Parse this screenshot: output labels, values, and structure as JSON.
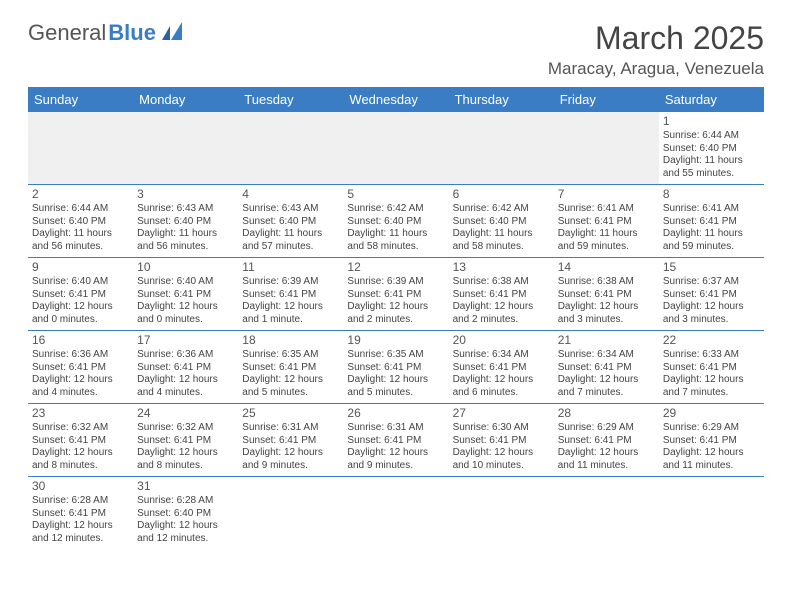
{
  "logo": {
    "text1": "General",
    "text2": "Blue"
  },
  "title": "March 2025",
  "location": "Maracay, Aragua, Venezuela",
  "day_headers": [
    "Sunday",
    "Monday",
    "Tuesday",
    "Wednesday",
    "Thursday",
    "Friday",
    "Saturday"
  ],
  "colors": {
    "header_bg": "#3b7dc4",
    "header_fg": "#ffffff",
    "rule": "#3b7dc4"
  },
  "weeks": [
    [
      {
        "n": "",
        "lines": []
      },
      {
        "n": "",
        "lines": []
      },
      {
        "n": "",
        "lines": []
      },
      {
        "n": "",
        "lines": []
      },
      {
        "n": "",
        "lines": []
      },
      {
        "n": "",
        "lines": []
      },
      {
        "n": "1",
        "lines": [
          "Sunrise: 6:44 AM",
          "Sunset: 6:40 PM",
          "Daylight: 11 hours and 55 minutes."
        ]
      }
    ],
    [
      {
        "n": "2",
        "lines": [
          "Sunrise: 6:44 AM",
          "Sunset: 6:40 PM",
          "Daylight: 11 hours and 56 minutes."
        ]
      },
      {
        "n": "3",
        "lines": [
          "Sunrise: 6:43 AM",
          "Sunset: 6:40 PM",
          "Daylight: 11 hours and 56 minutes."
        ]
      },
      {
        "n": "4",
        "lines": [
          "Sunrise: 6:43 AM",
          "Sunset: 6:40 PM",
          "Daylight: 11 hours and 57 minutes."
        ]
      },
      {
        "n": "5",
        "lines": [
          "Sunrise: 6:42 AM",
          "Sunset: 6:40 PM",
          "Daylight: 11 hours and 58 minutes."
        ]
      },
      {
        "n": "6",
        "lines": [
          "Sunrise: 6:42 AM",
          "Sunset: 6:40 PM",
          "Daylight: 11 hours and 58 minutes."
        ]
      },
      {
        "n": "7",
        "lines": [
          "Sunrise: 6:41 AM",
          "Sunset: 6:41 PM",
          "Daylight: 11 hours and 59 minutes."
        ]
      },
      {
        "n": "8",
        "lines": [
          "Sunrise: 6:41 AM",
          "Sunset: 6:41 PM",
          "Daylight: 11 hours and 59 minutes."
        ]
      }
    ],
    [
      {
        "n": "9",
        "lines": [
          "Sunrise: 6:40 AM",
          "Sunset: 6:41 PM",
          "Daylight: 12 hours and 0 minutes."
        ]
      },
      {
        "n": "10",
        "lines": [
          "Sunrise: 6:40 AM",
          "Sunset: 6:41 PM",
          "Daylight: 12 hours and 0 minutes."
        ]
      },
      {
        "n": "11",
        "lines": [
          "Sunrise: 6:39 AM",
          "Sunset: 6:41 PM",
          "Daylight: 12 hours and 1 minute."
        ]
      },
      {
        "n": "12",
        "lines": [
          "Sunrise: 6:39 AM",
          "Sunset: 6:41 PM",
          "Daylight: 12 hours and 2 minutes."
        ]
      },
      {
        "n": "13",
        "lines": [
          "Sunrise: 6:38 AM",
          "Sunset: 6:41 PM",
          "Daylight: 12 hours and 2 minutes."
        ]
      },
      {
        "n": "14",
        "lines": [
          "Sunrise: 6:38 AM",
          "Sunset: 6:41 PM",
          "Daylight: 12 hours and 3 minutes."
        ]
      },
      {
        "n": "15",
        "lines": [
          "Sunrise: 6:37 AM",
          "Sunset: 6:41 PM",
          "Daylight: 12 hours and 3 minutes."
        ]
      }
    ],
    [
      {
        "n": "16",
        "lines": [
          "Sunrise: 6:36 AM",
          "Sunset: 6:41 PM",
          "Daylight: 12 hours and 4 minutes."
        ]
      },
      {
        "n": "17",
        "lines": [
          "Sunrise: 6:36 AM",
          "Sunset: 6:41 PM",
          "Daylight: 12 hours and 4 minutes."
        ]
      },
      {
        "n": "18",
        "lines": [
          "Sunrise: 6:35 AM",
          "Sunset: 6:41 PM",
          "Daylight: 12 hours and 5 minutes."
        ]
      },
      {
        "n": "19",
        "lines": [
          "Sunrise: 6:35 AM",
          "Sunset: 6:41 PM",
          "Daylight: 12 hours and 5 minutes."
        ]
      },
      {
        "n": "20",
        "lines": [
          "Sunrise: 6:34 AM",
          "Sunset: 6:41 PM",
          "Daylight: 12 hours and 6 minutes."
        ]
      },
      {
        "n": "21",
        "lines": [
          "Sunrise: 6:34 AM",
          "Sunset: 6:41 PM",
          "Daylight: 12 hours and 7 minutes."
        ]
      },
      {
        "n": "22",
        "lines": [
          "Sunrise: 6:33 AM",
          "Sunset: 6:41 PM",
          "Daylight: 12 hours and 7 minutes."
        ]
      }
    ],
    [
      {
        "n": "23",
        "lines": [
          "Sunrise: 6:32 AM",
          "Sunset: 6:41 PM",
          "Daylight: 12 hours and 8 minutes."
        ]
      },
      {
        "n": "24",
        "lines": [
          "Sunrise: 6:32 AM",
          "Sunset: 6:41 PM",
          "Daylight: 12 hours and 8 minutes."
        ]
      },
      {
        "n": "25",
        "lines": [
          "Sunrise: 6:31 AM",
          "Sunset: 6:41 PM",
          "Daylight: 12 hours and 9 minutes."
        ]
      },
      {
        "n": "26",
        "lines": [
          "Sunrise: 6:31 AM",
          "Sunset: 6:41 PM",
          "Daylight: 12 hours and 9 minutes."
        ]
      },
      {
        "n": "27",
        "lines": [
          "Sunrise: 6:30 AM",
          "Sunset: 6:41 PM",
          "Daylight: 12 hours and 10 minutes."
        ]
      },
      {
        "n": "28",
        "lines": [
          "Sunrise: 6:29 AM",
          "Sunset: 6:41 PM",
          "Daylight: 12 hours and 11 minutes."
        ]
      },
      {
        "n": "29",
        "lines": [
          "Sunrise: 6:29 AM",
          "Sunset: 6:41 PM",
          "Daylight: 12 hours and 11 minutes."
        ]
      }
    ],
    [
      {
        "n": "30",
        "lines": [
          "Sunrise: 6:28 AM",
          "Sunset: 6:41 PM",
          "Daylight: 12 hours and 12 minutes."
        ]
      },
      {
        "n": "31",
        "lines": [
          "Sunrise: 6:28 AM",
          "Sunset: 6:40 PM",
          "Daylight: 12 hours and 12 minutes."
        ]
      },
      {
        "n": "",
        "lines": []
      },
      {
        "n": "",
        "lines": []
      },
      {
        "n": "",
        "lines": []
      },
      {
        "n": "",
        "lines": []
      },
      {
        "n": "",
        "lines": []
      }
    ]
  ]
}
